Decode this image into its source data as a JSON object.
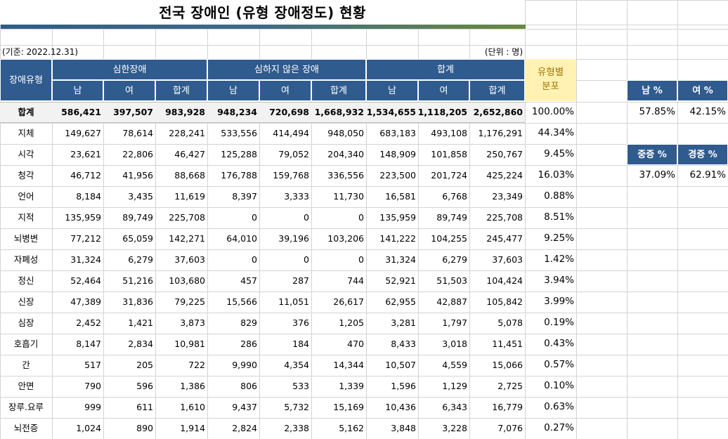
{
  "title": "전국 장애인 (유형 장애정도) 현황",
  "base_date": "(기준: 2022.12.31)",
  "unit": "(단위 : 명)",
  "header": {
    "type_col": "장애유형",
    "severe": "심한장애",
    "mild": "심하지 않은 장애",
    "total": "합계",
    "male": "남",
    "female": "여",
    "sum": "합계",
    "dist_line1": "유형별",
    "dist_line2": "분포"
  },
  "rows": [
    {
      "type": "합계",
      "s_m": "586,421",
      "s_f": "397,507",
      "s_t": "983,928",
      "m_m": "948,234",
      "m_f": "720,698",
      "m_t": "1,668,932",
      "t_m": "1,534,655",
      "t_f": "1,118,205",
      "t_t": "2,652,860",
      "dist": "100.00%"
    },
    {
      "type": "지체",
      "s_m": "149,627",
      "s_f": "78,614",
      "s_t": "228,241",
      "m_m": "533,556",
      "m_f": "414,494",
      "m_t": "948,050",
      "t_m": "683,183",
      "t_f": "493,108",
      "t_t": "1,176,291",
      "dist": "44.34%"
    },
    {
      "type": "시각",
      "s_m": "23,621",
      "s_f": "22,806",
      "s_t": "46,427",
      "m_m": "125,288",
      "m_f": "79,052",
      "m_t": "204,340",
      "t_m": "148,909",
      "t_f": "101,858",
      "t_t": "250,767",
      "dist": "9.45%"
    },
    {
      "type": "청각",
      "s_m": "46,712",
      "s_f": "41,956",
      "s_t": "88,668",
      "m_m": "176,788",
      "m_f": "159,768",
      "m_t": "336,556",
      "t_m": "223,500",
      "t_f": "201,724",
      "t_t": "425,224",
      "dist": "16.03%"
    },
    {
      "type": "언어",
      "s_m": "8,184",
      "s_f": "3,435",
      "s_t": "11,619",
      "m_m": "8,397",
      "m_f": "3,333",
      "m_t": "11,730",
      "t_m": "16,581",
      "t_f": "6,768",
      "t_t": "23,349",
      "dist": "0.88%"
    },
    {
      "type": "지적",
      "s_m": "135,959",
      "s_f": "89,749",
      "s_t": "225,708",
      "m_m": "0",
      "m_f": "0",
      "m_t": "0",
      "t_m": "135,959",
      "t_f": "89,749",
      "t_t": "225,708",
      "dist": "8.51%"
    },
    {
      "type": "뇌병변",
      "s_m": "77,212",
      "s_f": "65,059",
      "s_t": "142,271",
      "m_m": "64,010",
      "m_f": "39,196",
      "m_t": "103,206",
      "t_m": "141,222",
      "t_f": "104,255",
      "t_t": "245,477",
      "dist": "9.25%"
    },
    {
      "type": "자폐성",
      "s_m": "31,324",
      "s_f": "6,279",
      "s_t": "37,603",
      "m_m": "0",
      "m_f": "0",
      "m_t": "0",
      "t_m": "31,324",
      "t_f": "6,279",
      "t_t": "37,603",
      "dist": "1.42%"
    },
    {
      "type": "정신",
      "s_m": "52,464",
      "s_f": "51,216",
      "s_t": "103,680",
      "m_m": "457",
      "m_f": "287",
      "m_t": "744",
      "t_m": "52,921",
      "t_f": "51,503",
      "t_t": "104,424",
      "dist": "3.94%"
    },
    {
      "type": "신장",
      "s_m": "47,389",
      "s_f": "31,836",
      "s_t": "79,225",
      "m_m": "15,566",
      "m_f": "11,051",
      "m_t": "26,617",
      "t_m": "62,955",
      "t_f": "42,887",
      "t_t": "105,842",
      "dist": "3.99%"
    },
    {
      "type": "심장",
      "s_m": "2,452",
      "s_f": "1,421",
      "s_t": "3,873",
      "m_m": "829",
      "m_f": "376",
      "m_t": "1,205",
      "t_m": "3,281",
      "t_f": "1,797",
      "t_t": "5,078",
      "dist": "0.19%"
    },
    {
      "type": "호흡기",
      "s_m": "8,147",
      "s_f": "2,834",
      "s_t": "10,981",
      "m_m": "286",
      "m_f": "184",
      "m_t": "470",
      "t_m": "8,433",
      "t_f": "3,018",
      "t_t": "11,451",
      "dist": "0.43%"
    },
    {
      "type": "간",
      "s_m": "517",
      "s_f": "205",
      "s_t": "722",
      "m_m": "9,990",
      "m_f": "4,354",
      "m_t": "14,344",
      "t_m": "10,507",
      "t_f": "4,559",
      "t_t": "15,066",
      "dist": "0.57%"
    },
    {
      "type": "안면",
      "s_m": "790",
      "s_f": "596",
      "s_t": "1,386",
      "m_m": "806",
      "m_f": "533",
      "m_t": "1,339",
      "t_m": "1,596",
      "t_f": "1,129",
      "t_t": "2,725",
      "dist": "0.10%"
    },
    {
      "type": "장루.요루",
      "s_m": "999",
      "s_f": "611",
      "s_t": "1,610",
      "m_m": "9,437",
      "m_f": "5,732",
      "m_t": "15,169",
      "t_m": "10,436",
      "t_f": "6,343",
      "t_t": "16,779",
      "dist": "0.63%"
    },
    {
      "type": "뇌전증",
      "s_m": "1,024",
      "s_f": "890",
      "s_t": "1,914",
      "m_m": "2,824",
      "m_f": "2,338",
      "m_t": "5,162",
      "t_m": "3,848",
      "t_f": "3,228",
      "t_t": "7,076",
      "dist": "0.27%"
    }
  ],
  "side": {
    "male_pct_label": "남 %",
    "female_pct_label": "여 %",
    "male_pct": "57.85%",
    "female_pct": "42.15%",
    "severe_pct_label": "중증 %",
    "mild_pct_label": "경증 %",
    "severe_pct": "37.09%",
    "mild_pct": "62.91%"
  },
  "colors": {
    "header_bg": "#2f5b8f",
    "header_text": "#ffffff",
    "dist_bg": "#fff2b3",
    "dist_text": "#a0740a",
    "grid": "#d4d4d4"
  }
}
